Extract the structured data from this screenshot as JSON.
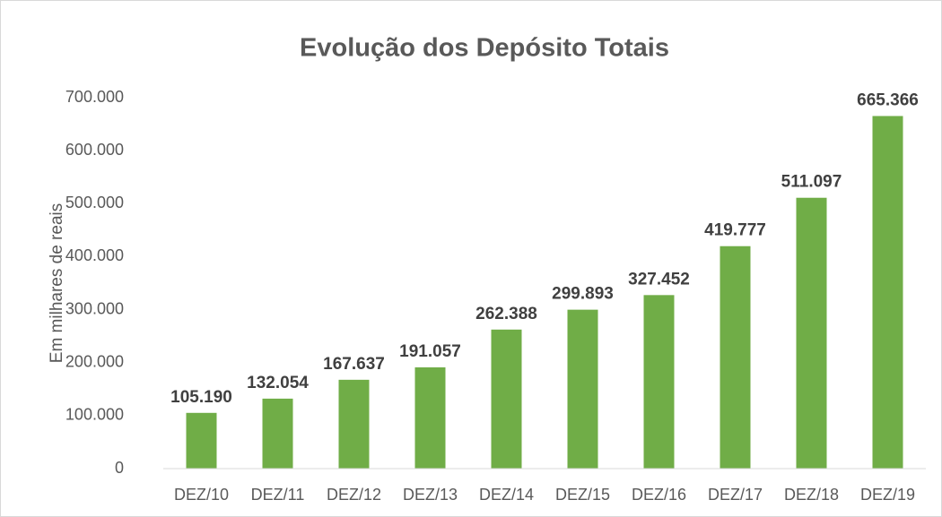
{
  "chart_data": {
    "type": "bar",
    "title": "Evolução dos Depósito Totais",
    "y_label": "Em milhares de reais",
    "categories": [
      "DEZ/10",
      "DEZ/11",
      "DEZ/12",
      "DEZ/13",
      "DEZ/14",
      "DEZ/15",
      "DEZ/16",
      "DEZ/17",
      "DEZ/18",
      "DEZ/19"
    ],
    "values": [
      105190,
      132054,
      167637,
      191057,
      262388,
      299893,
      327452,
      419777,
      511097,
      665366
    ],
    "value_labels": [
      "105.190",
      "132.054",
      "167.637",
      "191.057",
      "262.388",
      "299.893",
      "327.452",
      "419.777",
      "511.097",
      "665.366"
    ],
    "color": "#70ad47",
    "ylim": [
      0,
      700000
    ],
    "yticks": [
      0,
      {
        "value": 100000,
        "label": "100.000"
      },
      {
        "value": 200000,
        "label": "200.000"
      },
      {
        "value": 300000,
        "label": "300.000"
      },
      {
        "value": 400000,
        "label": "400.000"
      },
      {
        "value": 500000,
        "label": "500.000"
      },
      {
        "value": 600000,
        "label": "600.000"
      },
      {
        "value": 700000,
        "label": "700.000"
      }
    ],
    "grid": false
  }
}
